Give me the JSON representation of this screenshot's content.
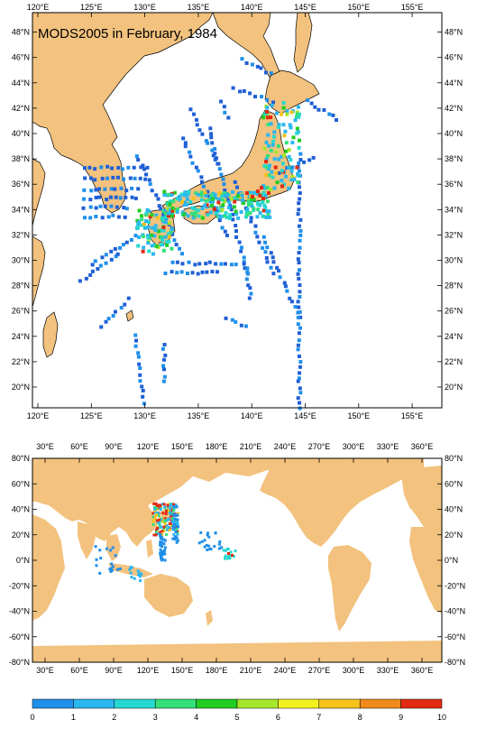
{
  "top_map": {
    "title": "MODS2005 in February, 1984",
    "x_ticks": [
      "120°E",
      "125°E",
      "130°E",
      "135°E",
      "140°E",
      "145°E",
      "150°E",
      "155°E"
    ],
    "y_ticks": [
      "20°N",
      "22°N",
      "24°N",
      "26°N",
      "28°N",
      "30°N",
      "32°N",
      "34°N",
      "36°N",
      "38°N",
      "40°N",
      "42°N",
      "44°N",
      "46°N",
      "48°N"
    ]
  },
  "bottom_map": {
    "x_ticks": [
      "30°E",
      "60°E",
      "90°E",
      "120°E",
      "150°E",
      "180°E",
      "210°E",
      "240°E",
      "270°E",
      "300°E",
      "330°E",
      "360°E"
    ],
    "y_ticks": [
      "80°N",
      "60°N",
      "40°N",
      "20°N",
      "0°N",
      "-20°N",
      "-40°N",
      "-60°N",
      "-80°N"
    ]
  },
  "colorbar": {
    "labels": [
      "0",
      "1",
      "2",
      "3",
      "4",
      "5",
      "6",
      "7",
      "8",
      "9",
      "10"
    ],
    "colors": [
      "#1f5fd6",
      "#1f8fea",
      "#2bb6f0",
      "#25d8d0",
      "#33e07a",
      "#22cc22",
      "#a6e62a",
      "#f2f21e",
      "#f6c21c",
      "#f08a1a",
      "#e22a12"
    ]
  },
  "colors": {
    "land": "#f2c27e",
    "sea": "#ffffff",
    "coast": "#000000"
  }
}
